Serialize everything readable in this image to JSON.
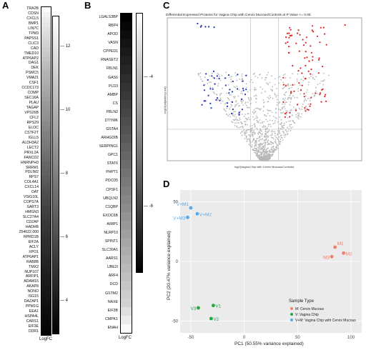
{
  "panel_letters": {
    "a": "A",
    "b": "B",
    "c": "C",
    "d": "D"
  },
  "chart_data": [
    {
      "type": "heatmap",
      "panel": "A",
      "xlabel": "LogFC",
      "colorbar": {
        "min": 3,
        "max": 13,
        "ticks": [
          4,
          6,
          8,
          10,
          12
        ],
        "colors": [
          "#000000",
          "#ffffff"
        ]
      },
      "rows": [
        "TRA2B",
        "CDSN",
        "CXCL5",
        "BMP1",
        "LIN7C",
        "TPM3",
        "PAPSS1",
        "CLIC3",
        "CAD",
        "TMED10",
        "ATP6AP2",
        "DAG1",
        "DEK",
        "PSMC5",
        "VMA21",
        "CSF1",
        "CCDC173",
        "COMP",
        "SEC16A",
        "PLAU",
        "TAGAP",
        "VPS26B",
        "CFL2",
        "RPS29",
        "ELOC",
        "CSTF2T",
        "IGLL5",
        "ALDH3A2",
        "LECT2",
        "PRXL2A",
        "FANCD2",
        "HNRNPH3",
        "SRRM1",
        "PDLIM2",
        "RPS7",
        "COL4A1",
        "CXCL14",
        "OAT",
        "VSIG10L",
        "COPS7A",
        "SART3",
        "HMGN3",
        "SLC27A4",
        "CD2AP",
        "HADHB",
        "254622.000",
        "RPRD1B",
        "EIF2A",
        "ACLY",
        "XPO1",
        "ATP6AP1",
        "RAB8B",
        "TMX2",
        "NUP107",
        "ARFIP1",
        "ADAM15",
        "AKAP8",
        "NONO",
        "ISG15",
        "DAZAP1",
        "PPM1G",
        "EEA1",
        "HSPA4L",
        "CARS1",
        "EIF3E",
        "DDR1"
      ],
      "values": [
        13,
        12.5,
        12.2,
        12.0,
        11.8,
        11.6,
        11.4,
        11.2,
        11.0,
        10.8,
        10.6,
        10.4,
        10.2,
        10.0,
        9.9,
        9.8,
        9.6,
        9.4,
        9.2,
        9.0,
        8.9,
        8.8,
        8.6,
        8.4,
        8.2,
        8.0,
        7.9,
        7.8,
        7.6,
        7.4,
        7.2,
        7.0,
        6.9,
        6.8,
        6.6,
        6.4,
        6.2,
        6.0,
        5.9,
        5.8,
        5.6,
        5.5,
        5.4,
        5.2,
        5.1,
        5.0,
        4.9,
        4.8,
        4.7,
        4.6,
        4.5,
        4.4,
        4.3,
        4.2,
        4.1,
        4.0,
        3.9,
        3.85,
        3.8,
        3.7,
        3.6,
        3.5,
        3.4,
        3.3,
        3.2,
        3.1
      ]
    },
    {
      "type": "heatmap",
      "panel": "B",
      "xlabel": "LogFC",
      "colorbar": {
        "min": -7,
        "max": -3,
        "ticks": [
          -4,
          -6
        ],
        "colors": [
          "#000000",
          "#ffffff"
        ]
      },
      "rows": [
        "LGALS3BP",
        "RBP4",
        "APOD",
        "VASN",
        "CPPED1",
        "RNASET2",
        "FBLN1",
        "GAS6",
        "PLD3",
        "AMBP",
        "CS",
        "FBLN2",
        "DTYMK",
        "GSTA4",
        "ARHGDIB",
        "SERPING1",
        "GPC1",
        "STAT6",
        "PHPT1",
        "PDCD5",
        "CPSF1",
        "UBQLN2",
        "C1QBP",
        "EXOC6B",
        "AIMP1",
        "NLRP10",
        "SPINT1",
        "SLC30A1",
        "AARS1",
        "UBE2I",
        "ARF4",
        "DCD",
        "GSTM2",
        "NAXE",
        "EIF3B",
        "CMPK1",
        "ENAH"
      ],
      "values": [
        -7.0,
        -6.9,
        -6.8,
        -6.7,
        -6.6,
        -6.5,
        -6.4,
        -6.3,
        -6.2,
        -6.1,
        -6.0,
        -5.9,
        -5.8,
        -5.7,
        -5.6,
        -5.5,
        -5.4,
        -5.3,
        -5.2,
        -5.1,
        -5.0,
        -4.9,
        -4.8,
        -4.7,
        -4.6,
        -4.5,
        -4.4,
        -4.3,
        -4.2,
        -4.1,
        -4.0,
        -3.9,
        -3.8,
        -3.7,
        -3.5,
        -3.3,
        -3.1
      ]
    },
    {
      "type": "scatter",
      "panel": "C",
      "title": "Differential Expressed Proteins for Vagina Chip with Cervix Mucous/Controls at P Value <= 0.05",
      "xlabel": "log2(Vagina Chip with Cervix Mucous/Controls)",
      "ylabel": "-log10(adjusted p-val)",
      "xlim": [
        -7,
        7
      ],
      "ylim": [
        0,
        10
      ],
      "colors": {
        "up": "#dd2222",
        "down": "#2233bb",
        "ns": "#b8b8b8"
      },
      "seed": 7
    },
    {
      "type": "scatter",
      "panel": "D",
      "xlabel": "PC1 (50.55% variance explained)",
      "ylabel": "PC2 (20.47% variance explained)",
      "xlim": [
        -60,
        110
      ],
      "ylim": [
        -60,
        60
      ],
      "xticks": [
        -50,
        0,
        50,
        100
      ],
      "yticks": [
        -50,
        0,
        50
      ],
      "legend_title": "Sample Type",
      "legend_position": "bottom-right",
      "background": "#ebebeb",
      "series": [
        {
          "name": "M: Cervix Mucous",
          "color": "#f08070",
          "points": [
            {
              "label": "M1",
              "x": 85,
              "y": 12
            },
            {
              "label": "M2",
              "x": 93,
              "y": 7
            },
            {
              "label": "M3",
              "x": 82,
              "y": 4
            }
          ]
        },
        {
          "name": "V: Vagina Chip",
          "color": "#22aa44",
          "points": [
            {
              "label": "V1",
              "x": -29,
              "y": -37
            },
            {
              "label": "V2",
              "x": -31,
              "y": -48
            },
            {
              "label": "V3",
              "x": -43,
              "y": -39
            }
          ]
        },
        {
          "name": "V+M: Vagina Chip with Cervix Mucous",
          "color": "#55aaee",
          "points": [
            {
              "label": "V+M1",
              "x": -50,
              "y": 45
            },
            {
              "label": "V+M2",
              "x": -44,
              "y": 40
            },
            {
              "label": "V+M3",
              "x": -53,
              "y": 37
            }
          ]
        }
      ]
    }
  ]
}
